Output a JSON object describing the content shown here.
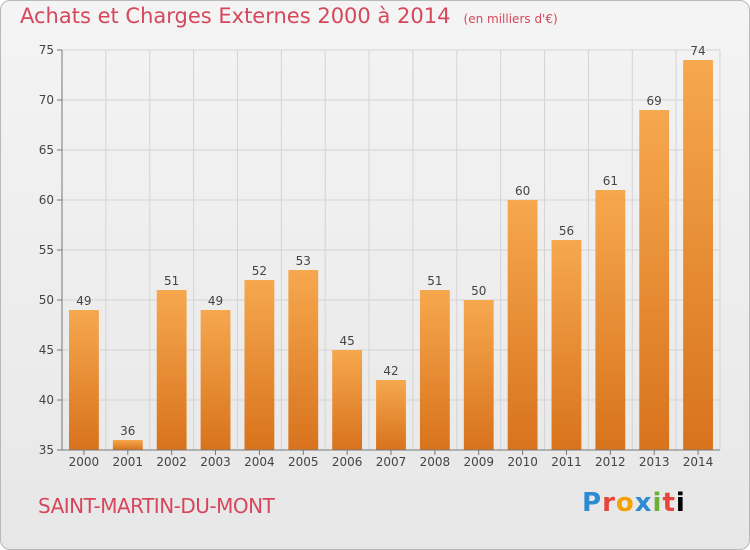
{
  "header": {
    "title": "Achats et Charges Externes 2000 à 2014",
    "unit": "(en milliers d'€)"
  },
  "location": "SAINT-MARTIN-DU-MONT",
  "logo": "Proxiti",
  "chart_data": {
    "type": "bar",
    "title": "Achats et Charges Externes 2000 à 2014",
    "xlabel": "",
    "ylabel": "",
    "categories": [
      "2000",
      "2001",
      "2002",
      "2003",
      "2004",
      "2005",
      "2006",
      "2007",
      "2008",
      "2009",
      "2010",
      "2011",
      "2012",
      "2013",
      "2014"
    ],
    "values": [
      49,
      36,
      51,
      49,
      52,
      53,
      45,
      42,
      51,
      50,
      60,
      56,
      61,
      69,
      74
    ],
    "ylim": [
      35,
      75
    ],
    "yticks": [
      35,
      40,
      45,
      50,
      55,
      60,
      65,
      70,
      75
    ],
    "grid": true,
    "colors": {
      "bar_light": "#f6a84e",
      "bar_dark": "#d8731c",
      "text": "#d6475b",
      "grid": "#d4d4d4"
    }
  }
}
